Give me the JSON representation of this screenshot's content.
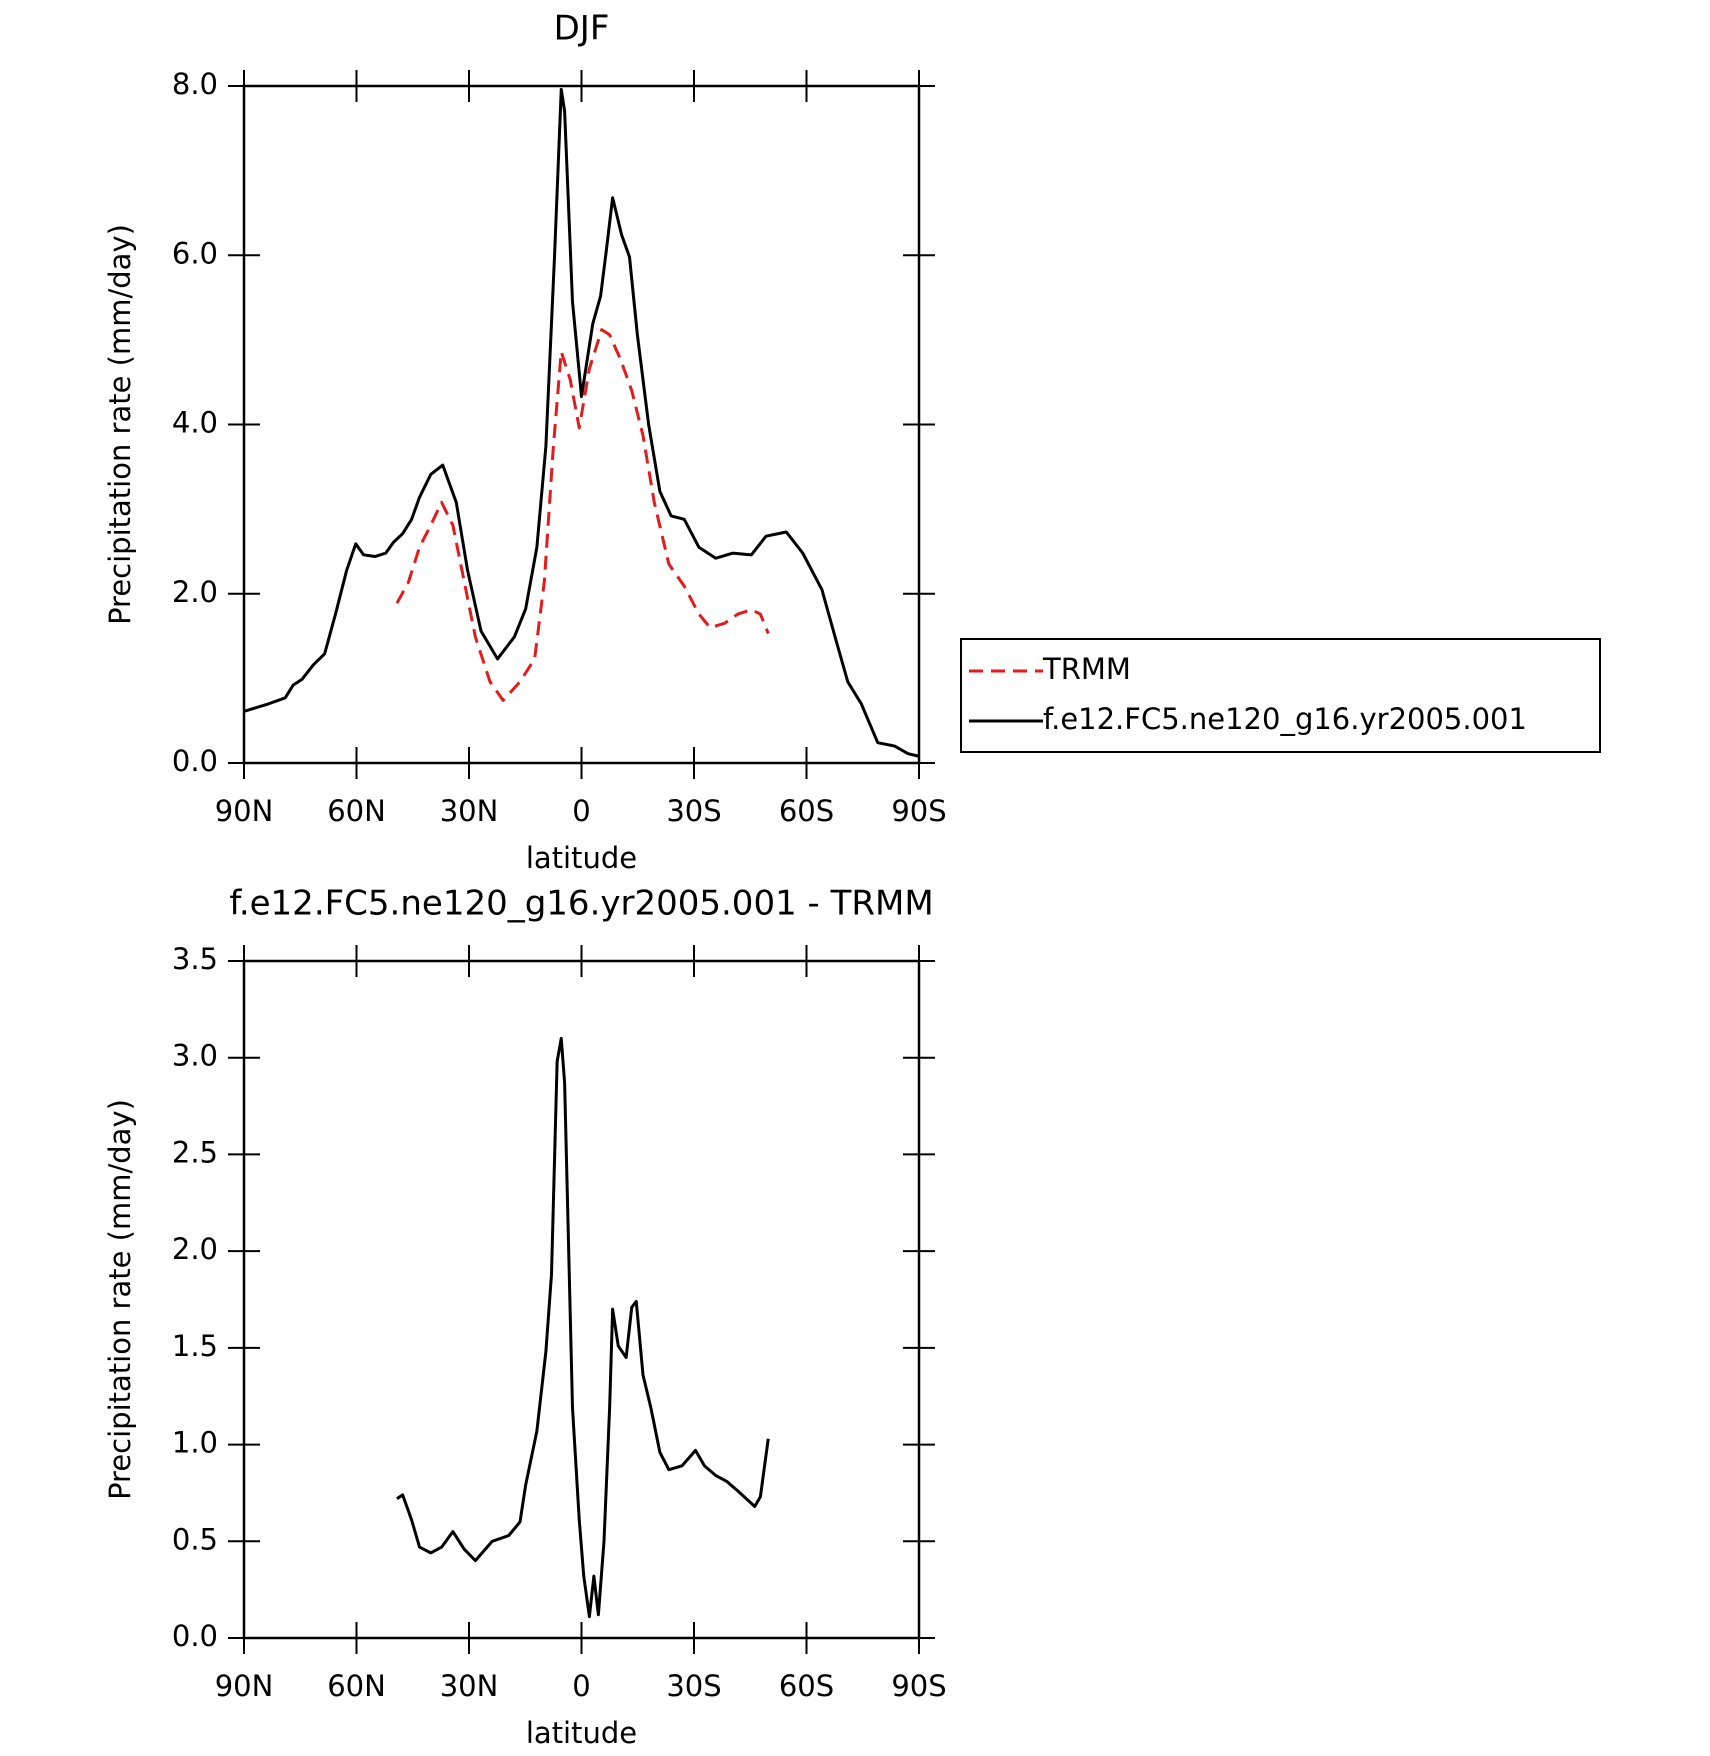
{
  "chart_data": [
    {
      "type": "line",
      "title": "DJF",
      "xlabel": "latitude",
      "ylabel": "Precipitation rate (mm/day)",
      "xlim": [
        90,
        -90
      ],
      "xticks": [
        {
          "value": 90,
          "label": "90N"
        },
        {
          "value": 60,
          "label": "60N"
        },
        {
          "value": 30,
          "label": "30N"
        },
        0,
        {
          "value": -30,
          "label": "30S"
        },
        {
          "value": -60,
          "label": "60S"
        },
        {
          "value": -90,
          "label": "90S"
        }
      ],
      "ylim": [
        0,
        8
      ],
      "yticks": [
        {
          "value": 0,
          "label": "0.0"
        },
        {
          "value": 2,
          "label": "2.0"
        },
        {
          "value": 4,
          "label": "4.0"
        },
        {
          "value": 6,
          "label": "6.0"
        },
        {
          "value": 8,
          "label": "8.0"
        }
      ],
      "legend": "right",
      "series": [
        {
          "name": "TRMM",
          "color": "#e41a1c",
          "linestyle": "dashed",
          "x": [
            49.2,
            46.2,
            43.2,
            40.2,
            37.3,
            34.3,
            31.3,
            28.3,
            24.4,
            20.9,
            16.4,
            12.5,
            9.9,
            7.5,
            5.4,
            3.0,
            0.6,
            -2.1,
            -5.4,
            -7.5,
            -10.4,
            -13.4,
            -16.4,
            -19.4,
            -23.3,
            -27.4,
            -31.3,
            -34.3,
            -38.1,
            -41.7,
            -45.3,
            -47.7,
            -49.8
          ],
          "values": [
            1.89,
            2.13,
            2.55,
            2.81,
            3.08,
            2.81,
            2.15,
            1.49,
            0.96,
            0.74,
            0.96,
            1.23,
            2.15,
            3.74,
            4.86,
            4.53,
            3.96,
            4.66,
            5.12,
            5.06,
            4.77,
            4.4,
            3.87,
            3.08,
            2.35,
            2.09,
            1.76,
            1.6,
            1.65,
            1.76,
            1.81,
            1.76,
            1.53
          ]
        },
        {
          "name": "f.e12.FC5.ne120_g16.yr2005.001",
          "color": "#000000",
          "linestyle": "solid",
          "x": [
            90,
            83.4,
            79,
            76.9,
            74.5,
            71.5,
            68.5,
            65.6,
            62.6,
            60.2,
            58.1,
            55.1,
            52.2,
            50.1,
            47.7,
            45.3,
            43.2,
            40.2,
            37.0,
            33.4,
            30.4,
            26.8,
            22.4,
            17.9,
            14.9,
            11.9,
            9.5,
            7.2,
            5.4,
            4.5,
            2.4,
            0,
            -3.0,
            -5.1,
            -6.6,
            -8.3,
            -10.7,
            -12.8,
            -14.9,
            -17.9,
            -20.9,
            -23.9,
            -27.4,
            -31.3,
            -35.8,
            -40.3,
            -45.3,
            -49.2,
            -54.6,
            -59.0,
            -64.1,
            -68.0,
            -71.0,
            -74.6,
            -79.0,
            -83.5,
            -87.1,
            -90
          ],
          "values": [
            0.61,
            0.7,
            0.77,
            0.92,
            0.99,
            1.16,
            1.29,
            1.76,
            2.28,
            2.59,
            2.46,
            2.44,
            2.48,
            2.61,
            2.71,
            2.88,
            3.14,
            3.41,
            3.52,
            3.08,
            2.28,
            1.56,
            1.23,
            1.49,
            1.82,
            2.55,
            3.74,
            5.98,
            7.96,
            7.7,
            5.45,
            4.33,
            5.19,
            5.52,
            6.05,
            6.68,
            6.24,
            5.98,
            5.06,
            4.0,
            3.21,
            2.92,
            2.88,
            2.55,
            2.42,
            2.48,
            2.46,
            2.68,
            2.73,
            2.48,
            2.05,
            1.43,
            0.96,
            0.7,
            0.24,
            0.2,
            0.11,
            0.08
          ]
        }
      ]
    },
    {
      "type": "line",
      "title": "f.e12.FC5.ne120_g16.yr2005.001 - TRMM",
      "xlabel": "latitude",
      "ylabel": "Precipitation rate (mm/day)",
      "xlim": [
        90,
        -90
      ],
      "xticks": [
        {
          "value": 90,
          "label": "90N"
        },
        {
          "value": 60,
          "label": "60N"
        },
        {
          "value": 30,
          "label": "30N"
        },
        0,
        {
          "value": -30,
          "label": "30S"
        },
        {
          "value": -60,
          "label": "60S"
        },
        {
          "value": -90,
          "label": "90S"
        }
      ],
      "ylim": [
        0,
        3.5
      ],
      "yticks": [
        {
          "value": 0,
          "label": "0.0"
        },
        0.5,
        {
          "value": 1,
          "label": "1.0"
        },
        1.5,
        {
          "value": 2,
          "label": "2.0"
        },
        2.5,
        {
          "value": 3,
          "label": "3.0"
        },
        3.5
      ],
      "series": [
        {
          "color": "#000000",
          "linestyle": "solid",
          "x": [
            49.2,
            47.7,
            45.3,
            43.2,
            40.2,
            37.3,
            34.3,
            31.3,
            28.3,
            23.8,
            19.4,
            16.4,
            14.9,
            11.9,
            9.5,
            8.0,
            6.5,
            5.4,
            4.5,
            2.4,
            0.6,
            -0.6,
            -2.1,
            -3.3,
            -4.5,
            -6.0,
            -7.5,
            -8.3,
            -9.8,
            -11.9,
            -13.4,
            -14.6,
            -16.4,
            -18.5,
            -20.9,
            -23.3,
            -26.8,
            -30.4,
            -32.8,
            -35.8,
            -38.7,
            -41.7,
            -46.2,
            -47.7,
            -49.8
          ],
          "values": [
            0.72,
            0.74,
            0.61,
            0.47,
            0.44,
            0.47,
            0.55,
            0.46,
            0.4,
            0.5,
            0.53,
            0.6,
            0.79,
            1.07,
            1.48,
            1.88,
            2.98,
            3.1,
            2.87,
            1.19,
            0.61,
            0.32,
            0.11,
            0.32,
            0.12,
            0.5,
            1.19,
            1.7,
            1.51,
            1.45,
            1.71,
            1.74,
            1.36,
            1.19,
            0.96,
            0.87,
            0.89,
            0.97,
            0.89,
            0.84,
            0.81,
            0.76,
            0.68,
            0.73,
            1.03
          ]
        }
      ]
    }
  ]
}
